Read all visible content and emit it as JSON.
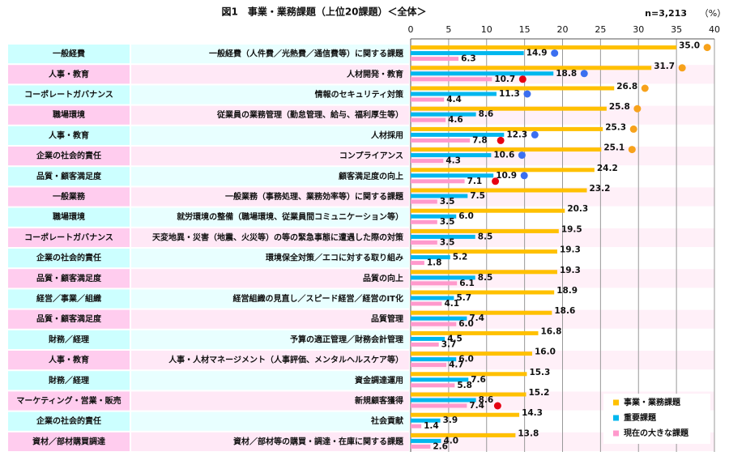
{
  "chart_data": {
    "type": "grouped-hbar",
    "title": "図1　事業・業務課題（上位20課題）＜全体＞",
    "note": "n=3,213",
    "x_label": "（%）",
    "xlim": [
      0,
      40
    ],
    "xticks": [
      0,
      5,
      10,
      15,
      20,
      25,
      30,
      35,
      40
    ],
    "grid": true,
    "legend": "bottom-right",
    "groups": [
      "一般経費",
      "人事・教育",
      "コーポレートガバナンス",
      "職場環境",
      "人事・教育",
      "企業の社会的責任",
      "品質・顧客満足度",
      "一般業務",
      "職場環境",
      "コーポレートガバナンス",
      "企業の社会的責任",
      "品質・顧客満足度",
      "経営／事業／組織",
      "品質・顧客満足度",
      "財務／経理",
      "人事・教育",
      "財務／経理",
      "マーケティング・営業・販売",
      "企業の社会的責任",
      "資材／部材購買調達"
    ],
    "categories": [
      "一般経費（人件費／光熱費／通信費等）に関する課題",
      "人材開発・教育",
      "情報のセキュリティ対策",
      "従業員の業務管理（勤怠管理、給与、福利厚生等）",
      "人材採用",
      "コンプライアンス",
      "顧客満足度の向上",
      "一般業務（事務処理、業務効率等）に関する課題",
      "就労環境の整備（職場環境、従業員間コミュニケーション等）",
      "天変地異・災害（地震、火災等）の等の緊急事態に遭遇した際の対策",
      "環境保全対策／エコに対する取り組み",
      "品質の向上",
      "経営組織の見直し／スピード経営／経営のIT化",
      "品質管理",
      "予算の適正管理／財務会計管理",
      "人事・人材マネージメント（人事評価、メンタルヘルスケア等）",
      "資金調達運用",
      "新規顧客獲得",
      "社会貢献",
      "資材／部材等の購買・調達・在庫に関する課題"
    ],
    "series": [
      {
        "name": "事業・業務課題",
        "color": "#ffc000",
        "marker_color": "#f7a21b",
        "marker_indices": [
          0,
          1,
          2,
          3,
          4,
          5
        ],
        "values": [
          35.0,
          31.7,
          26.8,
          25.8,
          25.3,
          25.1,
          24.2,
          23.2,
          20.3,
          19.5,
          19.3,
          19.3,
          18.9,
          18.6,
          16.8,
          16.0,
          15.3,
          15.2,
          14.3,
          13.8
        ],
        "value_labels": [
          "35.0",
          "31.7",
          "26.8",
          "25.8",
          "25.3",
          "25.1",
          "24.2",
          "23.2",
          "20.3",
          "19.5",
          "19.3",
          "19.3",
          "18.9",
          "18.6",
          "16.8",
          "16.0",
          "15.3",
          "15.2",
          "14.3",
          "13.8"
        ]
      },
      {
        "name": "重要課題",
        "color": "#00b7ee",
        "marker_color": "#3b6ff0",
        "marker_indices": [
          0,
          1,
          2,
          4,
          5,
          6
        ],
        "values": [
          14.9,
          18.8,
          11.3,
          8.6,
          12.3,
          10.6,
          10.9,
          7.5,
          6.0,
          8.5,
          5.2,
          8.5,
          5.7,
          7.4,
          4.5,
          6.0,
          7.6,
          8.6,
          3.9,
          4.0
        ],
        "value_labels": [
          "14.9",
          "18.8",
          "11.3",
          "8.6",
          "12.3",
          "10.6",
          "10.9",
          "7.5",
          "6.0",
          "8.5",
          "5.2",
          "8.5",
          "5.7",
          "7.4",
          "4.5",
          "6.0",
          "7.6",
          "8.6",
          "3.9",
          "4.0"
        ]
      },
      {
        "name": "現在の大きな課題",
        "color": "#ff99cc",
        "marker_color": "#e60012",
        "marker_indices": [
          1,
          4,
          6,
          17
        ],
        "values": [
          6.3,
          10.7,
          4.4,
          4.6,
          7.8,
          4.3,
          7.1,
          3.5,
          3.5,
          3.5,
          1.8,
          6.1,
          4.1,
          6.0,
          3.7,
          4.7,
          5.8,
          7.4,
          1.4,
          2.6
        ],
        "value_labels": [
          "6.3",
          "10.7",
          "4.4",
          "4.6",
          "7.8",
          "4.3",
          "7.1",
          "3.5",
          "3.5",
          "3.5",
          "1.8",
          "6.1",
          "4.1",
          "6.0",
          "3.7",
          "4.7",
          "5.8",
          "7.4",
          "1.4",
          "2.6"
        ]
      }
    ]
  }
}
